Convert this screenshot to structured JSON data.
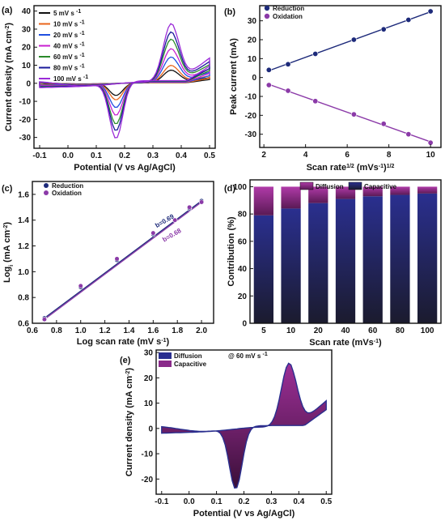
{
  "panel_labels": {
    "a": "(a)",
    "b": "(b)",
    "c": "(c)",
    "d": "(d)",
    "e": "(e)"
  },
  "chart_data": [
    {
      "id": "a",
      "type": "line",
      "xlabel": "Potential (V vs Ag/AgCl)",
      "ylabel": "Current density (mA cm",
      "ylabel_sup": "-2",
      "ylabel_tail": ")",
      "xlim": [
        -0.12,
        0.52
      ],
      "ylim": [
        -36,
        43
      ],
      "xticks": [
        "-0.1",
        "0.0",
        "0.1",
        "0.2",
        "0.3",
        "0.4",
        "0.5"
      ],
      "xtick_values": [
        -0.1,
        0.0,
        0.1,
        0.2,
        0.3,
        0.4,
        0.5
      ],
      "yticks": [
        "-30",
        "-20",
        "-10",
        "0",
        "10",
        "20",
        "30",
        "40"
      ],
      "ytick_values": [
        -30,
        -20,
        -10,
        0,
        10,
        20,
        30,
        40
      ],
      "legend_position": "top-left",
      "unit_base": "mV s",
      "unit_sup": "-1",
      "series": [
        {
          "name": "5 mV s",
          "color": "#111111",
          "amp": 0.22
        },
        {
          "name": "10 mV s",
          "color": "#e8641b",
          "amp": 0.3
        },
        {
          "name": "20 mV s",
          "color": "#1f4fe0",
          "amp": 0.44
        },
        {
          "name": "40 mV s",
          "color": "#c81fd0",
          "amp": 0.58
        },
        {
          "name": "60 mV s",
          "color": "#2a8a2a",
          "amp": 0.74
        },
        {
          "name": "80 mV s",
          "color": "#1a1a9a",
          "amp": 0.86
        },
        {
          "name": "100 mV s",
          "color": "#9b2bd8",
          "amp": 1.0
        }
      ]
    },
    {
      "id": "b",
      "type": "scatter",
      "xlabel": "Scan rate",
      "xlabel_sup": "1/2",
      "xlabel_tail": " (mVs",
      "xlabel_sup2": "-1",
      "xlabel_tail2": ")",
      "xlabel_sup3": "1/2",
      "ylabel": "Peak current (mA)",
      "xlim": [
        1.8,
        10.5
      ],
      "ylim": [
        -37,
        38
      ],
      "xticks": [
        "2",
        "4",
        "6",
        "8",
        "10"
      ],
      "xtick_values": [
        2,
        4,
        6,
        8,
        10
      ],
      "yticks": [
        "-30",
        "-20",
        "-10",
        "0",
        "10",
        "20",
        "30"
      ],
      "ytick_values": [
        -30,
        -20,
        -10,
        0,
        10,
        20,
        30
      ],
      "legend_position": "top-left",
      "series": [
        {
          "name": "Reduction",
          "color": "#1d2a7a",
          "x": [
            2.24,
            3.16,
            4.47,
            6.32,
            7.75,
            8.94,
            10.0
          ],
          "y": [
            4,
            7,
            12.5,
            20,
            25.5,
            30.5,
            35
          ]
        },
        {
          "name": "Oxidation",
          "color": "#8b3aa8",
          "x": [
            2.24,
            3.16,
            4.47,
            6.32,
            7.75,
            8.94,
            10.0
          ],
          "y": [
            -4,
            -7,
            -12.5,
            -19.5,
            -24.5,
            -30,
            -34.5
          ]
        }
      ]
    },
    {
      "id": "c",
      "type": "scatter",
      "xlabel": "Log scan rate (mV s",
      "xlabel_sup": "-1",
      "xlabel_tail": ")",
      "ylabel": "Log",
      "ylabel_sub": "i",
      "ylabel_tail": " (mA cm",
      "ylabel_sup": "-2",
      "ylabel_tail2": ")",
      "xlim": [
        0.6,
        2.1
      ],
      "ylim": [
        0.6,
        1.7
      ],
      "xticks": [
        "0.6",
        "0.8",
        "1.0",
        "1.2",
        "1.4",
        "1.6",
        "1.8",
        "2.0"
      ],
      "xtick_values": [
        0.6,
        0.8,
        1.0,
        1.2,
        1.4,
        1.6,
        1.8,
        2.0
      ],
      "yticks": [
        "0.6",
        "0.8",
        "1.0",
        "1.2",
        "1.4",
        "1.6"
      ],
      "ytick_values": [
        0.6,
        0.8,
        1.0,
        1.2,
        1.4,
        1.6
      ],
      "legend_position": "top-left",
      "annotations": [
        {
          "text": "b=0.69",
          "x": 1.63,
          "y": 1.34,
          "color": "#1d2a7a"
        },
        {
          "text": "b=0.68",
          "x": 1.69,
          "y": 1.23,
          "color": "#8b3aa8"
        }
      ],
      "series": [
        {
          "name": "Reduction",
          "color": "#1d2a7a",
          "x": [
            0.7,
            1.0,
            1.3,
            1.6,
            1.78,
            1.9,
            2.0
          ],
          "y": [
            0.64,
            0.88,
            1.09,
            1.29,
            1.4,
            1.49,
            1.55
          ]
        },
        {
          "name": "Oxidation",
          "color": "#8b3aa8",
          "x": [
            0.7,
            1.0,
            1.3,
            1.6,
            1.78,
            1.9,
            2.0
          ],
          "y": [
            0.63,
            0.89,
            1.1,
            1.3,
            1.4,
            1.5,
            1.54
          ]
        }
      ]
    },
    {
      "id": "d",
      "type": "bar",
      "xlabel": "Scan rate (mVs",
      "xlabel_sup": "-1",
      "xlabel_tail": ")",
      "ylabel": "Contribution (%)",
      "ylim": [
        0,
        105
      ],
      "yticks": [
        "0",
        "20",
        "40",
        "60",
        "80",
        "100"
      ],
      "ytick_values": [
        0,
        20,
        40,
        60,
        80,
        100
      ],
      "categories": [
        "5",
        "10",
        "20",
        "40",
        "60",
        "80",
        "100"
      ],
      "legend_position": "top",
      "series": [
        {
          "name": "Capacitive",
          "color": "#2a2f8f",
          "values": [
            79,
            84,
            88,
            91,
            93,
            94,
            95
          ]
        },
        {
          "name": "Diffusion",
          "color": "#9b2f8f",
          "values": [
            21,
            16,
            12,
            9,
            7,
            6,
            5
          ]
        }
      ]
    },
    {
      "id": "e",
      "type": "area",
      "xlabel": "Potential (V vs Ag/AgCl)",
      "ylabel": "Current density (mA cm",
      "ylabel_sup": "-2",
      "ylabel_tail": ")",
      "xlim": [
        -0.12,
        0.52
      ],
      "ylim": [
        -26,
        31
      ],
      "xticks": [
        "-0.1",
        "0.0",
        "0.1",
        "0.2",
        "0.3",
        "0.4",
        "0.5"
      ],
      "xtick_values": [
        -0.1,
        0.0,
        0.1,
        0.2,
        0.3,
        0.4,
        0.5
      ],
      "yticks": [
        "-20",
        "-10",
        "0",
        "10",
        "20",
        "30"
      ],
      "ytick_values": [
        -20,
        -10,
        0,
        10,
        20,
        30
      ],
      "annotation": "@ 60 mV s",
      "annotation_sup": "-1",
      "legend_position": "top-left",
      "series": [
        {
          "name": "Diffusion",
          "color": "#2a2f8f"
        },
        {
          "name": "Capacitive",
          "color": "#8a2a8a"
        }
      ]
    }
  ]
}
